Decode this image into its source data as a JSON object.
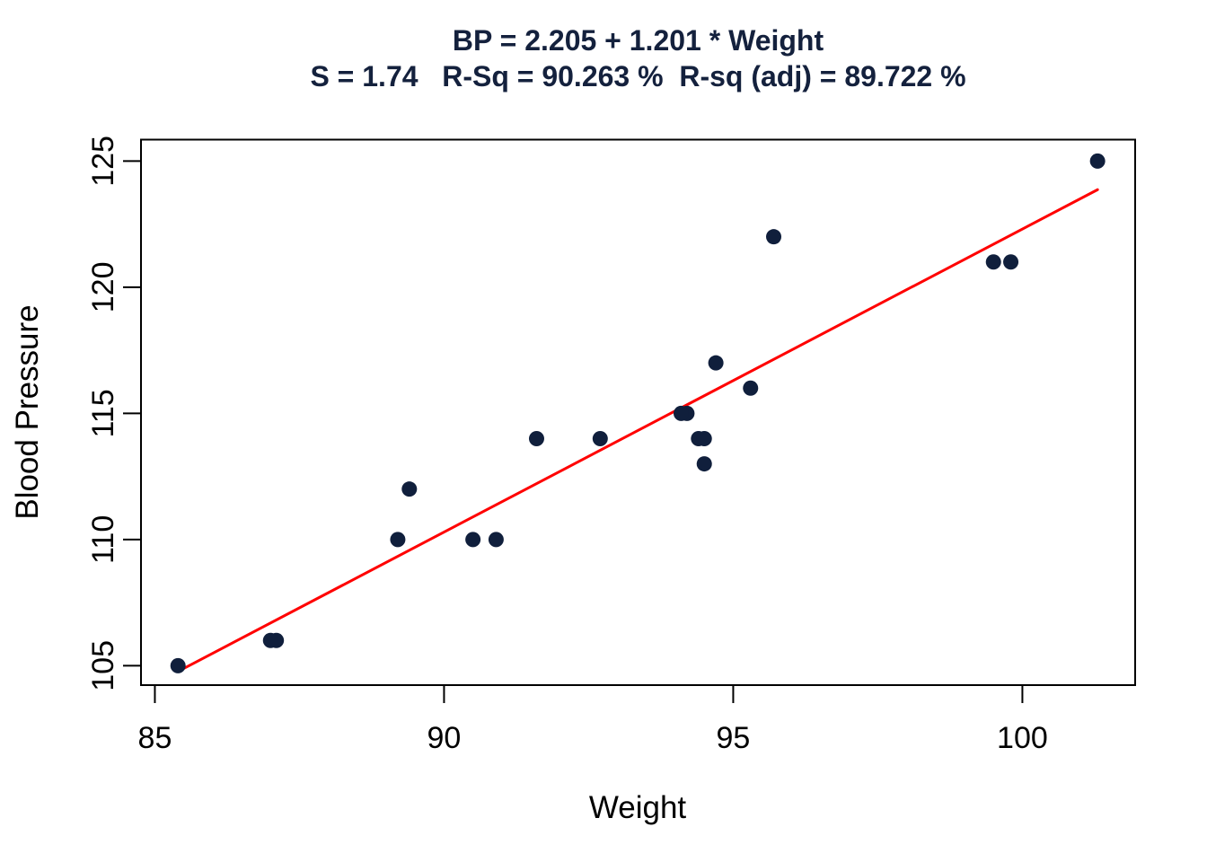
{
  "chart_data": {
    "type": "scatter",
    "title": "BP = 2.205 + 1.201 * Weight",
    "subtitle": "S = 1.74   R-Sq = 90.263 %  R-sq (adj) = 89.722 %",
    "xlabel": "Weight",
    "ylabel": "Blood Pressure",
    "x_ticks": [
      85,
      90,
      95,
      100
    ],
    "y_ticks": [
      105,
      110,
      115,
      120,
      125
    ],
    "xlim": [
      84.76,
      101.95
    ],
    "ylim": [
      104.23,
      125.85
    ],
    "grid": false,
    "legend": "none",
    "points": [
      [
        85.4,
        105
      ],
      [
        94.2,
        115
      ],
      [
        95.3,
        116
      ],
      [
        94.7,
        117
      ],
      [
        89.4,
        112
      ],
      [
        99.5,
        121
      ],
      [
        99.8,
        121
      ],
      [
        90.9,
        110
      ],
      [
        89.2,
        110
      ],
      [
        92.7,
        114
      ],
      [
        94.4,
        114
      ],
      [
        94.1,
        115
      ],
      [
        91.6,
        114
      ],
      [
        87.1,
        106
      ],
      [
        101.3,
        125
      ],
      [
        94.5,
        114
      ],
      [
        87.0,
        106
      ],
      [
        94.5,
        113
      ],
      [
        90.5,
        110
      ],
      [
        95.7,
        122
      ]
    ],
    "regression_line": {
      "equation": "BP = 2.205 + 1.201 * Weight",
      "intercept": 2.205,
      "slope": 1.201,
      "x_range": [
        85.4,
        101.3
      ]
    },
    "stats": {
      "S": 1.74,
      "R_sq_pct": 90.263,
      "R_sq_adj_pct": 89.722
    },
    "colors": {
      "point": "#101F3C",
      "line": "#FF0000",
      "title": "#14213D",
      "axis": "#000000",
      "background": "#FFFFFF"
    }
  }
}
